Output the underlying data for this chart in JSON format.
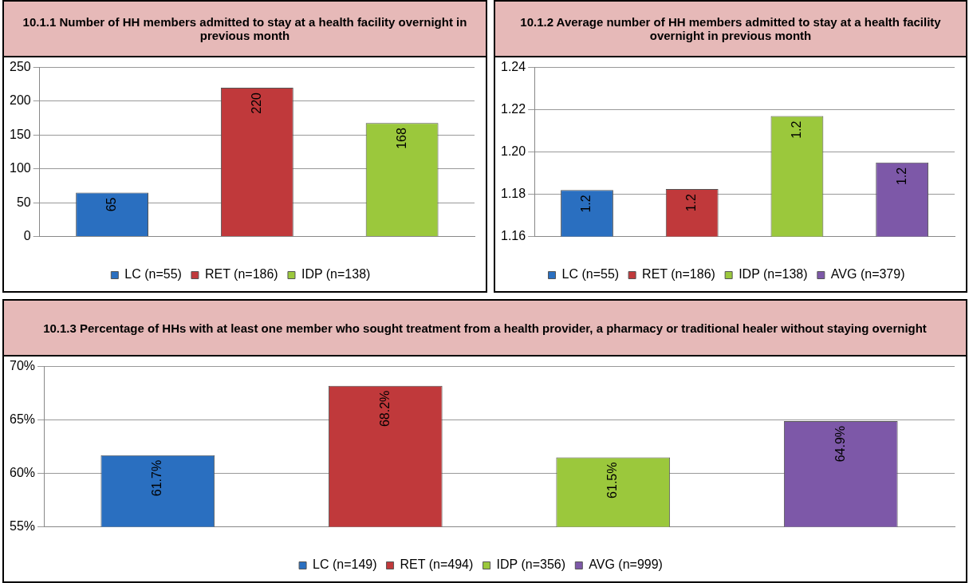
{
  "chart_data": [
    {
      "type": "bar",
      "title": "10.1.1 Number of HH members admitted to stay at a health facility overnight in previous month",
      "categories": [
        null,
        null,
        null
      ],
      "series": [
        {
          "name": "LC (n=55)",
          "color": "#2a6fc0",
          "values": [
            65,
            null,
            null
          ]
        },
        {
          "name": "RET (n=186)",
          "color": "#c0393b",
          "values": [
            null,
            220,
            null
          ]
        },
        {
          "name": "IDP (n=138)",
          "color": "#9bc83c",
          "values": [
            null,
            null,
            168
          ]
        }
      ],
      "ylim": [
        0,
        250
      ],
      "yticks": [
        0,
        50,
        100,
        150,
        200,
        250
      ],
      "grid": "y",
      "legend": "bottom",
      "data_labels": true
    },
    {
      "type": "bar",
      "title": "10.1.2 Average number of HH members admitted to stay at a health facility overnight in previous month",
      "categories": [
        null,
        null,
        null,
        null
      ],
      "series": [
        {
          "name": "LC (n=55)",
          "color": "#2a6fc0",
          "values": [
            1.182,
            null,
            null,
            null
          ],
          "value_labels": [
            "1.2",
            null,
            null,
            null
          ]
        },
        {
          "name": "RET (n=186)",
          "color": "#c0393b",
          "values": [
            null,
            1.1825,
            null,
            null
          ],
          "value_labels": [
            null,
            "1.2",
            null,
            null
          ]
        },
        {
          "name": "IDP (n=138)",
          "color": "#9bc83c",
          "values": [
            null,
            null,
            1.217,
            null
          ],
          "value_labels": [
            null,
            null,
            "1.2",
            null
          ]
        },
        {
          "name": "AVG (n=379)",
          "color": "#7d58a8",
          "values": [
            null,
            null,
            null,
            1.195
          ],
          "value_labels": [
            null,
            null,
            null,
            "1.2"
          ]
        }
      ],
      "ylim": [
        1.16,
        1.24
      ],
      "yticks": [
        1.16,
        1.18,
        {
          "value": 1.2,
          "label": "1.20"
        },
        1.22,
        {
          "value": 1.24,
          "label": "1.24"
        }
      ],
      "grid": "y",
      "legend": "bottom"
    },
    {
      "type": "bar",
      "title": "10.1.3 Percentage of HHs with at least one member who sought treatment from a health provider, a pharmacy or traditional healer without staying overnight",
      "categories": [
        null,
        null,
        null,
        null
      ],
      "series": [
        {
          "name": "LC (n=149)",
          "color": "#2a6fc0",
          "values": [
            61.7,
            null,
            null,
            null
          ],
          "value_labels": [
            "61.7%",
            null,
            null,
            null
          ]
        },
        {
          "name": "RET (n=494)",
          "color": "#c0393b",
          "values": [
            null,
            68.2,
            null,
            null
          ],
          "value_labels": [
            null,
            "68.2%",
            null,
            null
          ]
        },
        {
          "name": "IDP (n=356)",
          "color": "#9bc83c",
          "values": [
            null,
            null,
            61.5,
            null
          ],
          "value_labels": [
            null,
            null,
            "61.5%",
            null
          ]
        },
        {
          "name": "AVG (n=999)",
          "color": "#7d58a8",
          "values": [
            null,
            null,
            null,
            64.9
          ],
          "value_labels": [
            null,
            null,
            null,
            "64.9%"
          ]
        }
      ],
      "ylim": [
        55,
        70
      ],
      "yticks": [
        {
          "value": 55,
          "label": "55%"
        },
        {
          "value": 60,
          "label": "60%"
        },
        {
          "value": 65,
          "label": "65%"
        },
        {
          "value": 70,
          "label": "70%"
        }
      ],
      "grid": "y",
      "legend": "bottom"
    }
  ]
}
